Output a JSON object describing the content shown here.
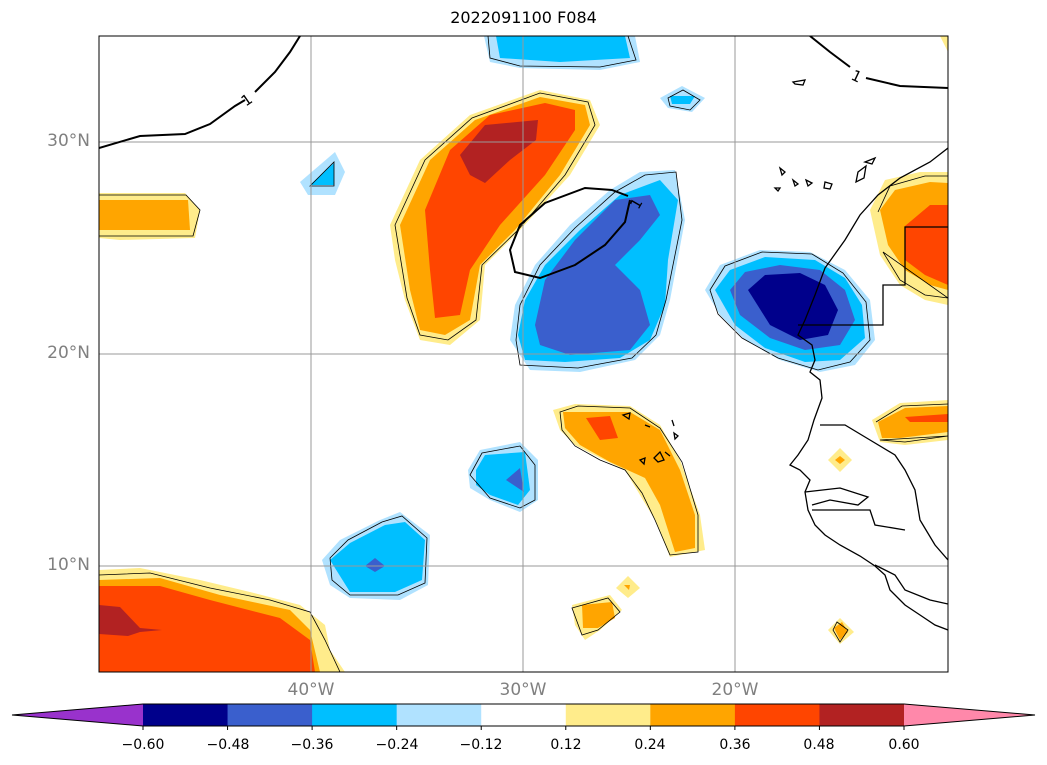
{
  "title": "2022091100 F084",
  "map": {
    "lat_ticks": [
      "30°N",
      "20°N",
      "10°N"
    ],
    "lon_ticks": [
      "40°W",
      "30°W",
      "20°W"
    ],
    "contour_label": "1",
    "contour_label_color": "#000000",
    "grid_color": "#999999"
  },
  "colorbar": {
    "ticks": [
      "−0.60",
      "−0.48",
      "−0.36",
      "−0.24",
      "−0.12",
      "0.12",
      "0.24",
      "0.36",
      "0.48",
      "0.60"
    ],
    "colors": [
      "#9932cc",
      "#00008b",
      "#3a5fcd",
      "#00bfff",
      "#b0e2ff",
      "#ffffff",
      "#ffec8b",
      "#ffa500",
      "#ff4500",
      "#b22222",
      "#ff88aa"
    ]
  }
}
